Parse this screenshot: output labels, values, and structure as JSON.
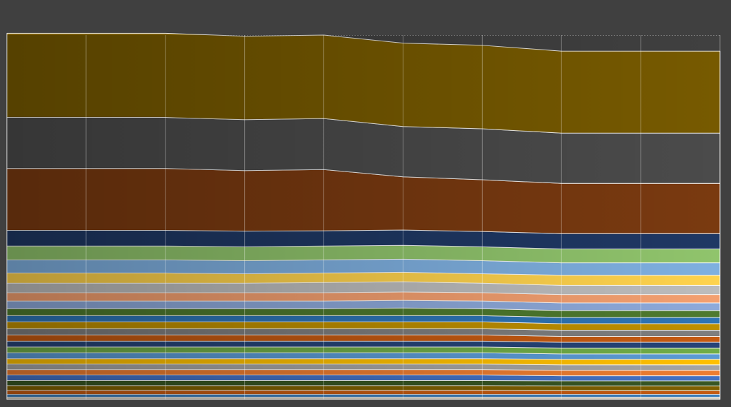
{
  "chart_data": {
    "type": "stacked-area",
    "categories": [
      null,
      null,
      null,
      null,
      null,
      null,
      null,
      null,
      null,
      null
    ],
    "ylim": [
      0,
      100
    ],
    "grid": true,
    "series": [
      {
        "color": "#d9d0c0",
        "values": [
          0.6,
          0.6,
          0.6,
          0.6,
          0.6,
          0.6,
          0.6,
          0.6,
          0.6,
          0.6
        ]
      },
      {
        "color": "#2e75b6",
        "values": [
          0.8,
          0.8,
          0.8,
          0.8,
          0.8,
          0.8,
          0.8,
          0.8,
          0.8,
          0.8
        ]
      },
      {
        "color": "#c55a11",
        "values": [
          1.1,
          1.1,
          1.1,
          1.1,
          1.1,
          1.1,
          1.1,
          1.0,
          1.0,
          1.0
        ]
      },
      {
        "color": "#7f6000",
        "values": [
          1.3,
          1.3,
          1.3,
          1.3,
          1.3,
          1.3,
          1.3,
          1.3,
          1.3,
          1.3
        ]
      },
      {
        "color": "#375623",
        "values": [
          1.4,
          1.4,
          1.4,
          1.4,
          1.4,
          1.4,
          1.4,
          1.4,
          1.4,
          1.4
        ]
      },
      {
        "color": "#4472c4",
        "values": [
          1.5,
          1.5,
          1.5,
          1.5,
          1.5,
          1.5,
          1.5,
          1.4,
          1.4,
          1.4
        ]
      },
      {
        "color": "#ed7d31",
        "values": [
          1.5,
          1.5,
          1.5,
          1.5,
          1.5,
          1.5,
          1.5,
          1.5,
          1.5,
          1.5
        ]
      },
      {
        "color": "#a5a5a5",
        "values": [
          1.5,
          1.5,
          1.5,
          1.5,
          1.5,
          1.5,
          1.5,
          1.5,
          1.5,
          1.5
        ]
      },
      {
        "color": "#ffc000",
        "values": [
          1.5,
          1.5,
          1.5,
          1.5,
          1.5,
          1.5,
          1.5,
          1.5,
          1.5,
          1.5
        ]
      },
      {
        "color": "#5b9bd5",
        "values": [
          1.6,
          1.6,
          1.6,
          1.6,
          1.6,
          1.6,
          1.6,
          1.5,
          1.5,
          1.5
        ]
      },
      {
        "color": "#70ad47",
        "values": [
          1.6,
          1.6,
          1.6,
          1.6,
          1.6,
          1.6,
          1.6,
          1.6,
          1.6,
          1.6
        ]
      },
      {
        "color": "#264478",
        "values": [
          1.6,
          1.6,
          1.6,
          1.6,
          1.6,
          1.6,
          1.6,
          1.6,
          1.6,
          1.6
        ]
      },
      {
        "color": "#c55a11",
        "values": [
          1.7,
          1.7,
          1.7,
          1.7,
          1.7,
          1.7,
          1.7,
          1.6,
          1.6,
          1.6
        ]
      },
      {
        "color": "#7f7f7f",
        "values": [
          1.7,
          1.7,
          1.7,
          1.7,
          1.7,
          1.7,
          1.7,
          1.7,
          1.7,
          1.7
        ]
      },
      {
        "color": "#bf9000",
        "values": [
          1.9,
          1.9,
          1.9,
          1.9,
          1.9,
          1.9,
          1.9,
          1.8,
          1.8,
          1.8
        ]
      },
      {
        "color": "#2e75b6",
        "values": [
          1.7,
          1.7,
          1.7,
          1.7,
          1.7,
          1.7,
          1.7,
          1.7,
          1.7,
          1.7
        ]
      },
      {
        "color": "#4e7a2e",
        "values": [
          1.9,
          1.9,
          1.9,
          1.9,
          1.9,
          2.1,
          1.9,
          1.9,
          1.9,
          1.9
        ]
      },
      {
        "color": "#8eaadb",
        "values": [
          2.1,
          2.1,
          2.1,
          2.1,
          2.1,
          2.1,
          2.1,
          2.1,
          2.1,
          2.1
        ]
      },
      {
        "color": "#f4a070",
        "values": [
          2.3,
          2.3,
          2.3,
          2.3,
          2.3,
          2.3,
          2.3,
          2.3,
          2.3,
          2.3
        ]
      },
      {
        "color": "#bdbdbd",
        "values": [
          2.6,
          2.6,
          2.6,
          2.6,
          2.8,
          2.8,
          2.6,
          2.5,
          2.5,
          2.5
        ]
      },
      {
        "color": "#ffd34d",
        "values": [
          2.8,
          2.8,
          2.8,
          2.6,
          2.6,
          2.6,
          2.6,
          2.8,
          2.8,
          2.8
        ]
      },
      {
        "color": "#7fb0e0",
        "values": [
          3.6,
          3.6,
          3.6,
          3.6,
          3.6,
          3.6,
          3.6,
          3.4,
          3.4,
          3.4
        ]
      },
      {
        "color": "#90c46c",
        "values": [
          3.8,
          3.8,
          3.8,
          3.8,
          3.8,
          3.8,
          3.8,
          3.8,
          3.8,
          3.8
        ]
      },
      {
        "color": "#1f3864",
        "values": [
          4.3,
          4.3,
          4.3,
          4.3,
          4.2,
          4.2,
          4.2,
          4.2,
          4.2,
          4.2
        ]
      },
      {
        "color": "#7a3a10",
        "values": [
          17.0,
          17.0,
          17.0,
          16.6,
          16.8,
          14.6,
          14.2,
          13.8,
          13.8,
          13.8
        ]
      },
      {
        "color": "#4b4b4b",
        "values": [
          14.0,
          14.0,
          14.0,
          14.0,
          14.0,
          13.8,
          14.0,
          13.8,
          13.8,
          13.8
        ]
      },
      {
        "color": "#775a00",
        "values": [
          23.1,
          23.1,
          23.1,
          22.9,
          22.9,
          22.9,
          22.9,
          22.5,
          22.5,
          22.5
        ]
      }
    ]
  }
}
